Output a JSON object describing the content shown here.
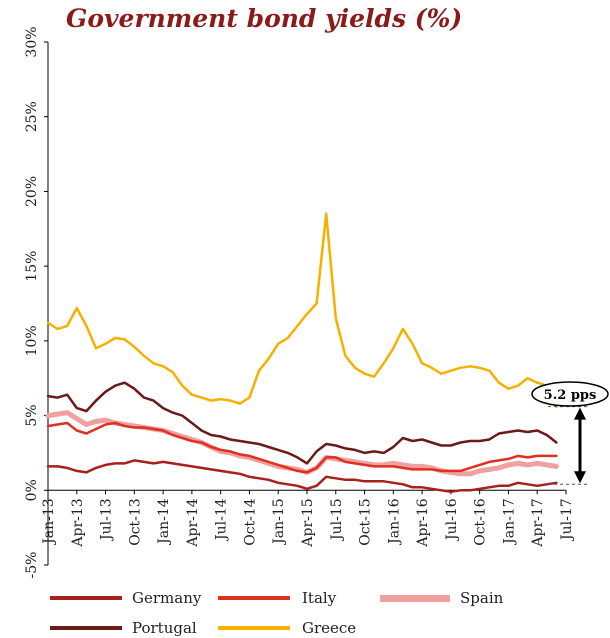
{
  "chart_data": {
    "type": "line",
    "title": "Government bond yields (%)",
    "xlabel": "",
    "ylabel": "",
    "ylim": [
      -5,
      30
    ],
    "y_ticks": [
      -5,
      0,
      5,
      10,
      15,
      20,
      25,
      30
    ],
    "y_tick_labels": [
      "-5%",
      "0%",
      "5%",
      "10%",
      "15%",
      "20%",
      "25%",
      "30%"
    ],
    "x_range": [
      0,
      54
    ],
    "x_ticks": [
      0,
      3,
      6,
      9,
      12,
      15,
      18,
      21,
      24,
      27,
      30,
      33,
      36,
      39,
      42,
      45,
      48,
      51,
      54
    ],
    "x_tick_labels": [
      "Jan-13",
      "Apr-13",
      "Jul-13",
      "Oct-13",
      "Jan-14",
      "Apr-14",
      "Jul-14",
      "Oct-14",
      "Jan-15",
      "Apr-15",
      "Jul-15",
      "Oct-15",
      "Jan-16",
      "Apr-16",
      "Jul-16",
      "Oct-16",
      "Jan-17",
      "Apr-17",
      "Jul-17"
    ],
    "grid": false,
    "legend_position": "bottom",
    "series": [
      {
        "name": "Germany",
        "color": "#a8201a",
        "width": 2.5,
        "x": [
          0,
          1,
          2,
          3,
          4,
          5,
          6,
          7,
          8,
          9,
          10,
          11,
          12,
          13,
          14,
          15,
          16,
          17,
          18,
          19,
          20,
          21,
          22,
          23,
          24,
          25,
          26,
          27,
          28,
          29,
          30,
          31,
          32,
          33,
          34,
          35,
          36,
          37,
          38,
          39,
          40,
          41,
          42,
          43,
          44,
          45,
          46,
          47,
          48,
          49,
          50,
          51,
          52,
          53
        ],
        "y": [
          1.6,
          1.6,
          1.5,
          1.3,
          1.2,
          1.5,
          1.7,
          1.8,
          1.8,
          2.0,
          1.9,
          1.8,
          1.9,
          1.8,
          1.7,
          1.6,
          1.5,
          1.4,
          1.3,
          1.2,
          1.1,
          0.9,
          0.8,
          0.7,
          0.5,
          0.4,
          0.3,
          0.1,
          0.3,
          0.9,
          0.8,
          0.7,
          0.7,
          0.6,
          0.6,
          0.6,
          0.5,
          0.4,
          0.2,
          0.2,
          0.1,
          0.0,
          -0.1,
          0.0,
          0.0,
          0.1,
          0.2,
          0.3,
          0.3,
          0.5,
          0.4,
          0.3,
          0.4,
          0.5
        ]
      },
      {
        "name": "Italy",
        "color": "#e03020",
        "width": 2.5,
        "x": [
          0,
          1,
          2,
          3,
          4,
          5,
          6,
          7,
          8,
          9,
          10,
          11,
          12,
          13,
          14,
          15,
          16,
          17,
          18,
          19,
          20,
          21,
          22,
          23,
          24,
          25,
          26,
          27,
          28,
          29,
          30,
          31,
          32,
          33,
          34,
          35,
          36,
          37,
          38,
          39,
          40,
          41,
          42,
          43,
          44,
          45,
          46,
          47,
          48,
          49,
          50,
          51,
          52,
          53
        ],
        "y": [
          4.3,
          4.4,
          4.5,
          4.0,
          3.8,
          4.1,
          4.4,
          4.5,
          4.3,
          4.2,
          4.2,
          4.1,
          4.0,
          3.7,
          3.5,
          3.3,
          3.2,
          2.9,
          2.7,
          2.6,
          2.4,
          2.3,
          2.1,
          1.9,
          1.7,
          1.5,
          1.3,
          1.2,
          1.5,
          2.2,
          2.2,
          1.9,
          1.8,
          1.7,
          1.6,
          1.6,
          1.6,
          1.5,
          1.4,
          1.4,
          1.4,
          1.3,
          1.3,
          1.3,
          1.5,
          1.7,
          1.9,
          2.0,
          2.1,
          2.3,
          2.2,
          2.3,
          2.3,
          2.3
        ]
      },
      {
        "name": "Spain",
        "color": "#f0a0a0",
        "width": 5,
        "x": [
          0,
          1,
          2,
          3,
          4,
          5,
          6,
          7,
          8,
          9,
          10,
          11,
          12,
          13,
          14,
          15,
          16,
          17,
          18,
          19,
          20,
          21,
          22,
          23,
          24,
          25,
          26,
          27,
          28,
          29,
          30,
          31,
          32,
          33,
          34,
          35,
          36,
          37,
          38,
          39,
          40,
          41,
          42,
          43,
          44,
          45,
          46,
          47,
          48,
          49,
          50,
          51,
          52,
          53
        ],
        "y": [
          5.0,
          5.1,
          5.2,
          4.8,
          4.4,
          4.6,
          4.7,
          4.5,
          4.4,
          4.3,
          4.2,
          4.1,
          4.0,
          3.8,
          3.6,
          3.4,
          3.2,
          2.9,
          2.6,
          2.5,
          2.3,
          2.2,
          2.0,
          1.8,
          1.6,
          1.5,
          1.4,
          1.2,
          1.5,
          2.2,
          2.1,
          2.0,
          1.9,
          1.8,
          1.7,
          1.7,
          1.8,
          1.7,
          1.6,
          1.6,
          1.5,
          1.3,
          1.2,
          1.1,
          1.1,
          1.3,
          1.4,
          1.5,
          1.7,
          1.8,
          1.7,
          1.8,
          1.7,
          1.6
        ]
      },
      {
        "name": "Portugal",
        "color": "#6b1a1a",
        "width": 2.5,
        "x": [
          0,
          1,
          2,
          3,
          4,
          5,
          6,
          7,
          8,
          9,
          10,
          11,
          12,
          13,
          14,
          15,
          16,
          17,
          18,
          19,
          20,
          21,
          22,
          23,
          24,
          25,
          26,
          27,
          28,
          29,
          30,
          31,
          32,
          33,
          34,
          35,
          36,
          37,
          38,
          39,
          40,
          41,
          42,
          43,
          44,
          45,
          46,
          47,
          48,
          49,
          50,
          51,
          52,
          53
        ],
        "y": [
          6.3,
          6.2,
          6.4,
          5.5,
          5.3,
          6.0,
          6.6,
          7.0,
          7.2,
          6.8,
          6.2,
          6.0,
          5.5,
          5.2,
          5.0,
          4.5,
          4.0,
          3.7,
          3.6,
          3.4,
          3.3,
          3.2,
          3.1,
          2.9,
          2.7,
          2.5,
          2.2,
          1.8,
          2.6,
          3.1,
          3.0,
          2.8,
          2.7,
          2.5,
          2.6,
          2.5,
          2.9,
          3.5,
          3.3,
          3.4,
          3.2,
          3.0,
          3.0,
          3.2,
          3.3,
          3.3,
          3.4,
          3.8,
          3.9,
          4.0,
          3.9,
          4.0,
          3.7,
          3.2
        ]
      },
      {
        "name": "Greece",
        "color": "#f5b000",
        "width": 2.5,
        "x": [
          0,
          1,
          2,
          3,
          4,
          5,
          6,
          7,
          8,
          9,
          10,
          11,
          12,
          13,
          14,
          15,
          16,
          17,
          18,
          19,
          20,
          21,
          22,
          23,
          24,
          25,
          26,
          27,
          28,
          29,
          30,
          31,
          32,
          33,
          34,
          35,
          36,
          37,
          38,
          39,
          40,
          41,
          42,
          43,
          44,
          45,
          46,
          47,
          48,
          49,
          50,
          51,
          52,
          53
        ],
        "y": [
          11.2,
          10.8,
          11.0,
          12.2,
          11.0,
          9.5,
          9.8,
          10.2,
          10.1,
          9.6,
          9.0,
          8.5,
          8.3,
          7.9,
          7.0,
          6.4,
          6.2,
          6.0,
          6.1,
          6.0,
          5.8,
          6.2,
          8.0,
          8.8,
          9.8,
          10.2,
          11.0,
          11.8,
          12.5,
          18.5,
          11.5,
          9.0,
          8.2,
          7.8,
          7.6,
          8.5,
          9.5,
          10.8,
          9.8,
          8.5,
          8.2,
          7.8,
          8.0,
          8.2,
          8.3,
          8.2,
          8.0,
          7.2,
          6.8,
          7.0,
          7.5,
          7.2,
          7.0,
          5.6
        ]
      }
    ],
    "annotation": {
      "text": "5.2 pps",
      "y_top": 5.6,
      "y_bottom": 0.4
    }
  }
}
